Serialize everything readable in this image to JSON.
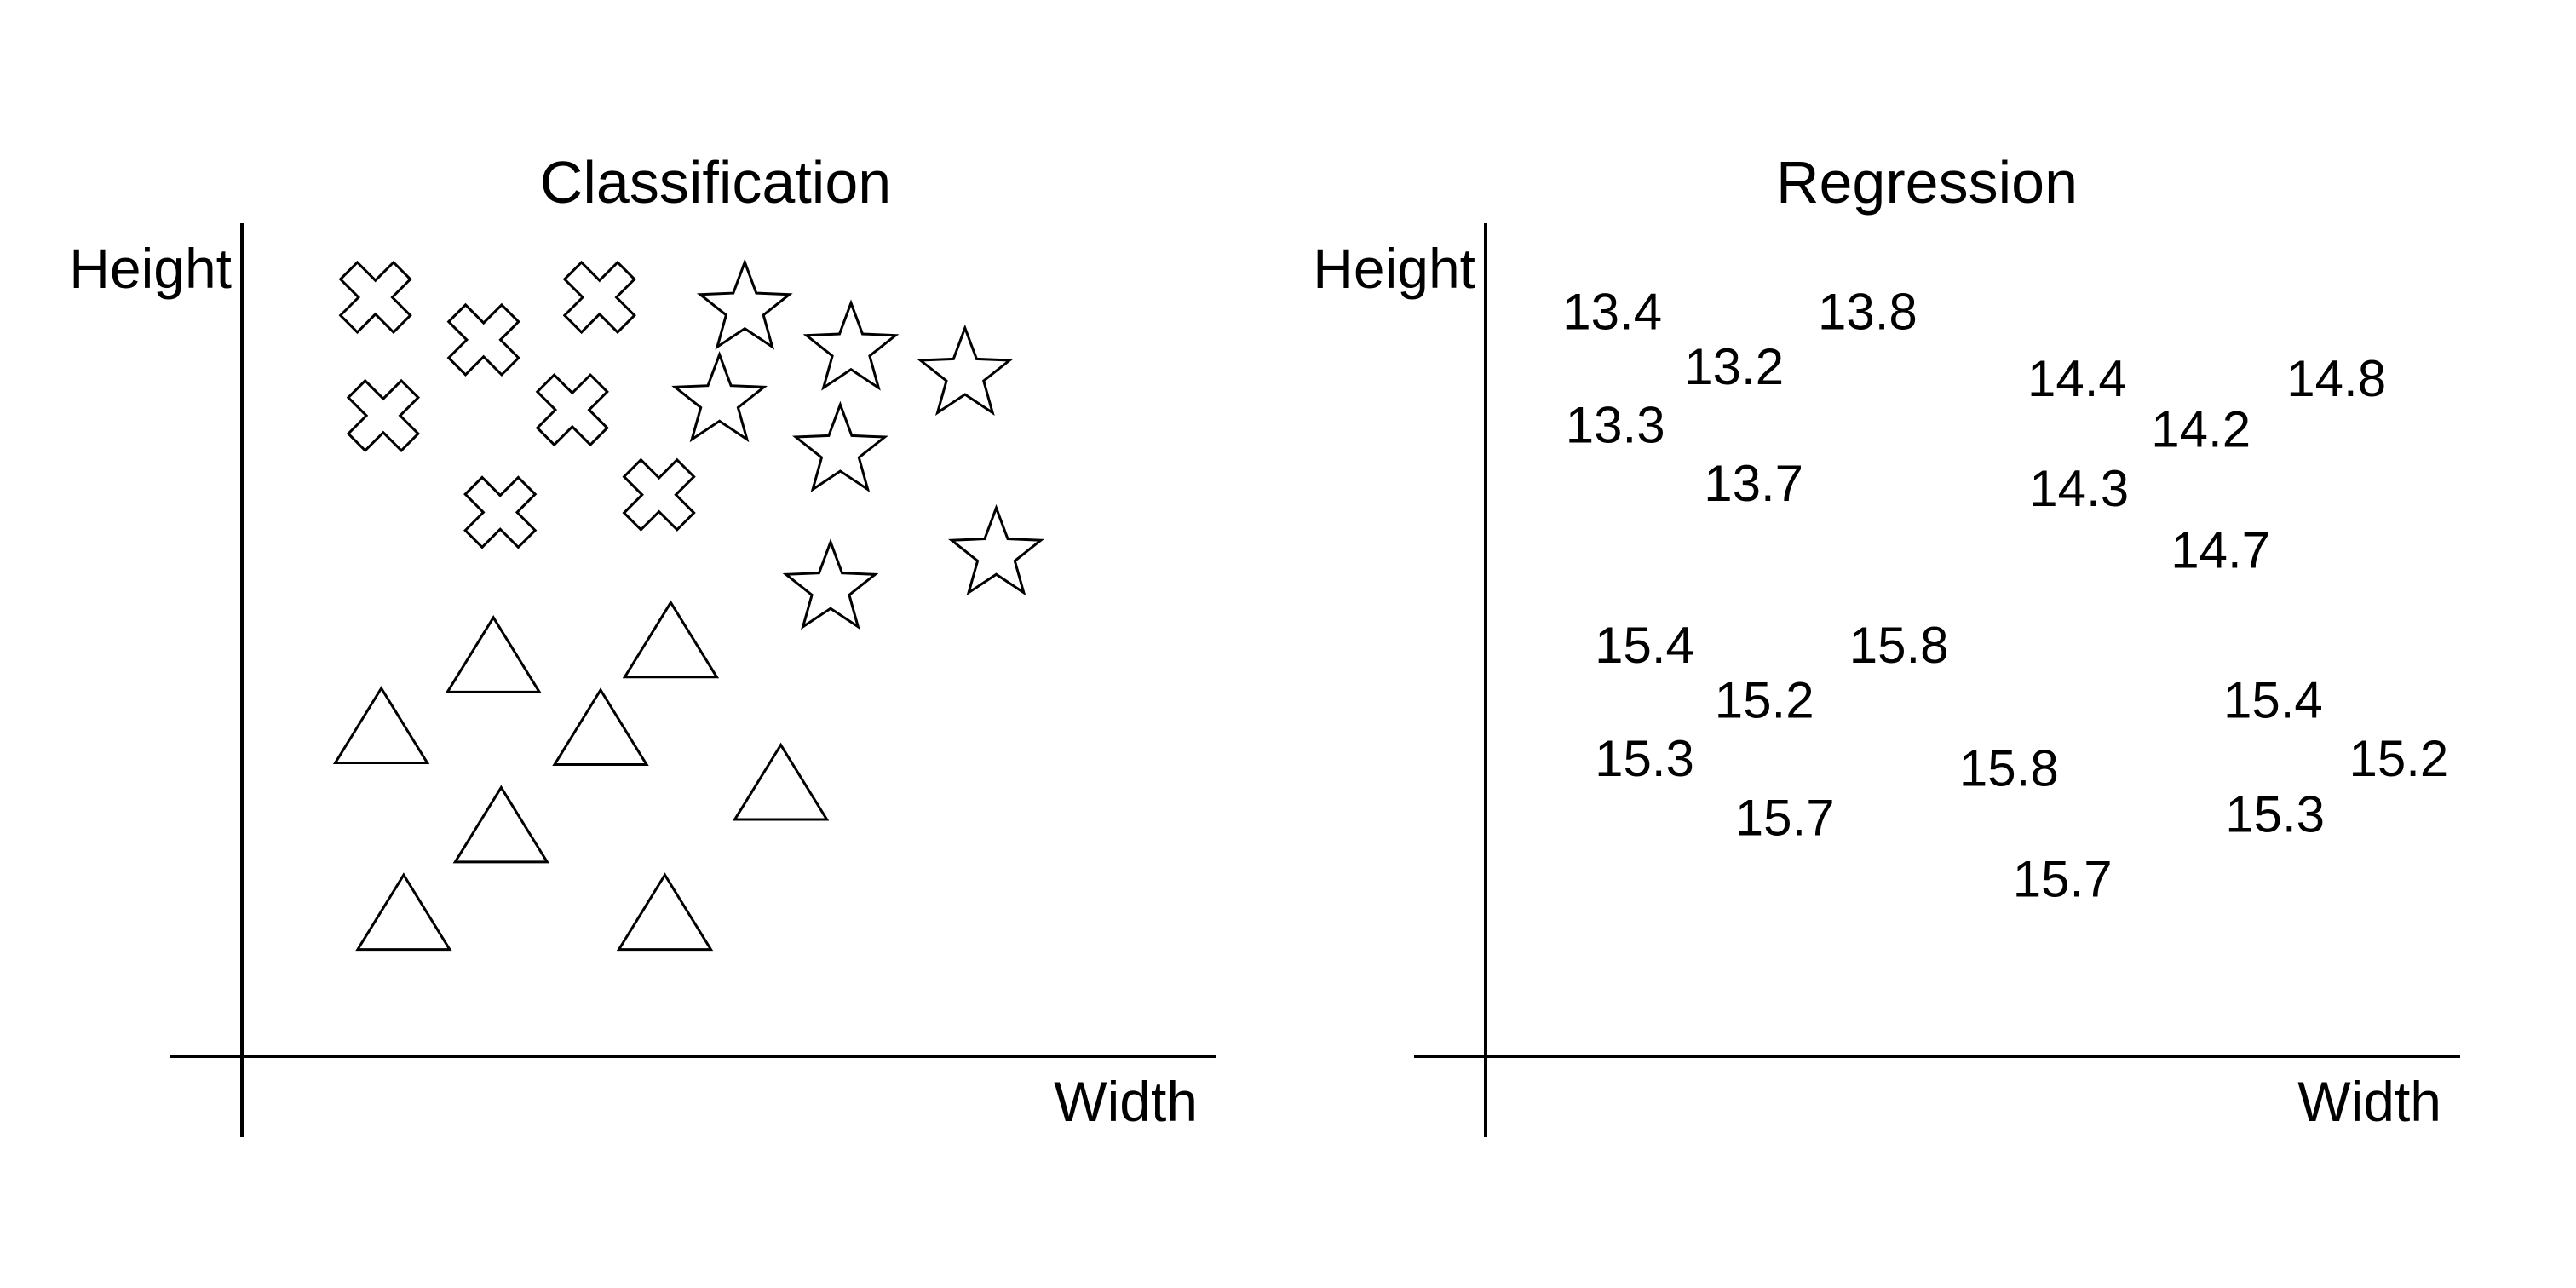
{
  "panels": [
    {
      "id": "classification",
      "title": "Classification",
      "y_label": "Height",
      "x_label": "Width",
      "marker_type": "shape",
      "points": [
        {
          "shape": "cross",
          "x": 0.137,
          "y": 0.911
        },
        {
          "shape": "cross",
          "x": 0.248,
          "y": 0.86
        },
        {
          "shape": "cross",
          "x": 0.367,
          "y": 0.911
        },
        {
          "shape": "cross",
          "x": 0.145,
          "y": 0.769
        },
        {
          "shape": "cross",
          "x": 0.339,
          "y": 0.776
        },
        {
          "shape": "cross",
          "x": 0.265,
          "y": 0.653
        },
        {
          "shape": "cross",
          "x": 0.428,
          "y": 0.674
        },
        {
          "shape": "star",
          "x": 0.516,
          "y": 0.897
        },
        {
          "shape": "star",
          "x": 0.625,
          "y": 0.848
        },
        {
          "shape": "star",
          "x": 0.742,
          "y": 0.818
        },
        {
          "shape": "star",
          "x": 0.49,
          "y": 0.786
        },
        {
          "shape": "star",
          "x": 0.614,
          "y": 0.726
        },
        {
          "shape": "star",
          "x": 0.774,
          "y": 0.602
        },
        {
          "shape": "star",
          "x": 0.604,
          "y": 0.561
        },
        {
          "shape": "triangle",
          "x": 0.258,
          "y": 0.477
        },
        {
          "shape": "triangle",
          "x": 0.44,
          "y": 0.495
        },
        {
          "shape": "triangle",
          "x": 0.143,
          "y": 0.392
        },
        {
          "shape": "triangle",
          "x": 0.368,
          "y": 0.39
        },
        {
          "shape": "triangle",
          "x": 0.553,
          "y": 0.324
        },
        {
          "shape": "triangle",
          "x": 0.266,
          "y": 0.273
        },
        {
          "shape": "triangle",
          "x": 0.166,
          "y": 0.168
        },
        {
          "shape": "triangle",
          "x": 0.434,
          "y": 0.168
        }
      ]
    },
    {
      "id": "regression",
      "title": "Regression",
      "y_label": "Height",
      "x_label": "Width",
      "marker_type": "value",
      "points": [
        {
          "value": "13.4",
          "x": 0.13,
          "y": 0.895
        },
        {
          "value": "13.8",
          "x": 0.392,
          "y": 0.895
        },
        {
          "value": "13.2",
          "x": 0.255,
          "y": 0.829
        },
        {
          "value": "14.4",
          "x": 0.607,
          "y": 0.815
        },
        {
          "value": "14.8",
          "x": 0.873,
          "y": 0.815
        },
        {
          "value": "13.3",
          "x": 0.133,
          "y": 0.759
        },
        {
          "value": "14.2",
          "x": 0.734,
          "y": 0.754
        },
        {
          "value": "13.7",
          "x": 0.275,
          "y": 0.689
        },
        {
          "value": "14.3",
          "x": 0.609,
          "y": 0.683
        },
        {
          "value": "14.7",
          "x": 0.754,
          "y": 0.609
        },
        {
          "value": "15.4",
          "x": 0.163,
          "y": 0.495
        },
        {
          "value": "15.8",
          "x": 0.424,
          "y": 0.495
        },
        {
          "value": "15.2",
          "x": 0.286,
          "y": 0.429
        },
        {
          "value": "15.4",
          "x": 0.808,
          "y": 0.429
        },
        {
          "value": "15.3",
          "x": 0.163,
          "y": 0.359
        },
        {
          "value": "15.2",
          "x": 0.937,
          "y": 0.359
        },
        {
          "value": "15.8",
          "x": 0.537,
          "y": 0.347
        },
        {
          "value": "15.7",
          "x": 0.307,
          "y": 0.288
        },
        {
          "value": "15.3",
          "x": 0.81,
          "y": 0.292
        },
        {
          "value": "15.7",
          "x": 0.592,
          "y": 0.214
        }
      ]
    }
  ]
}
